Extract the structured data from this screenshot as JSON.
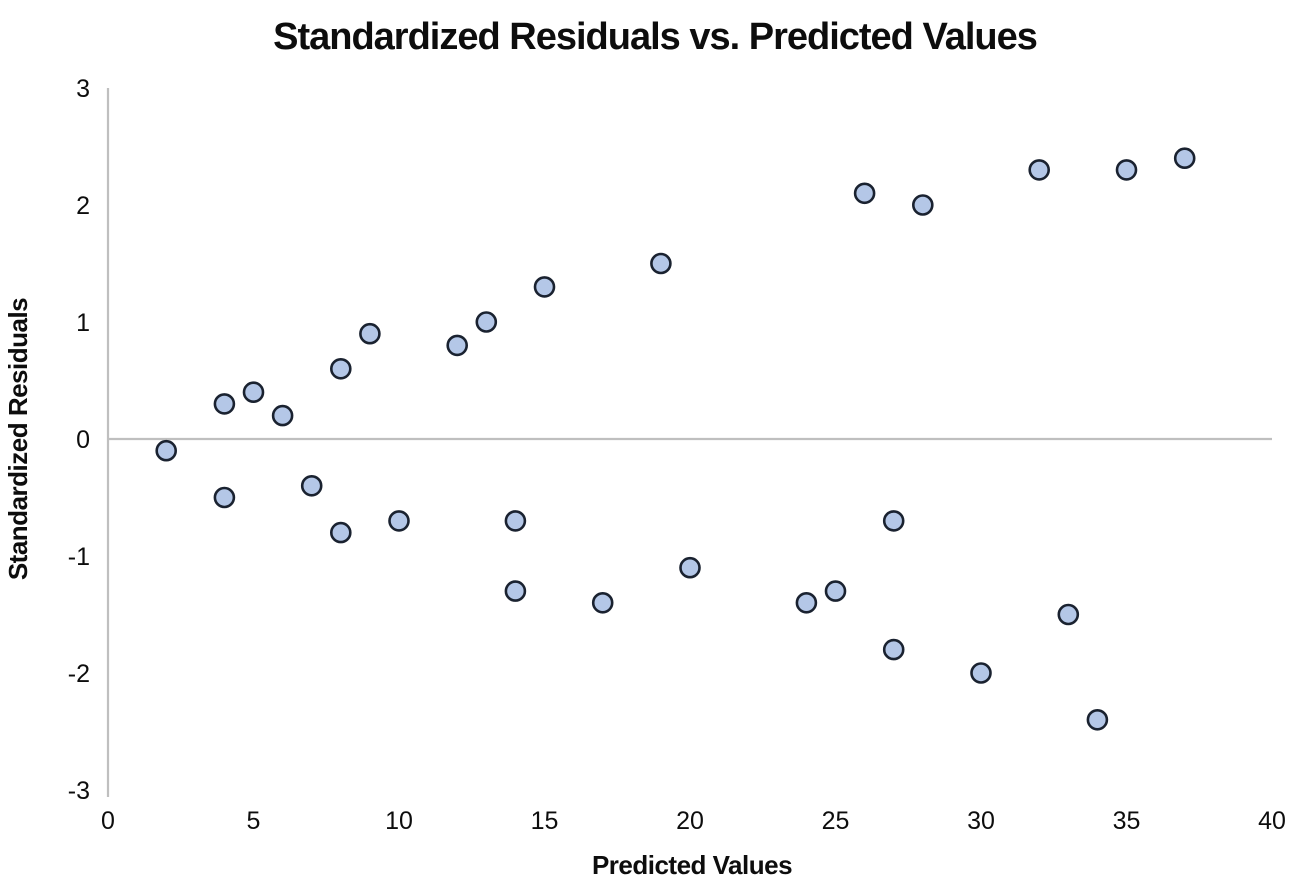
{
  "chart": {
    "title": "Standardized Residuals vs. Predicted Values",
    "x_axis_label": "Predicted Values",
    "y_axis_label": "Standardized Residuals"
  },
  "chart_data": {
    "type": "scatter",
    "title": "Standardized Residuals vs. Predicted Values",
    "xlabel": "Predicted Values",
    "ylabel": "Standardized Residuals",
    "xlim": [
      0,
      40
    ],
    "ylim": [
      -3,
      3
    ],
    "x_ticks": [
      0,
      5,
      10,
      15,
      20,
      25,
      30,
      35,
      40
    ],
    "y_ticks": [
      3,
      2,
      1,
      0,
      -1,
      -2,
      -3
    ],
    "grid": "off",
    "legend": "none",
    "baseline_at_y": 0,
    "colors": {
      "marker_fill": "#b4c7e7",
      "marker_stroke": "#1a2230",
      "axis_line": "#bfbfbf",
      "text": "#0d0d0d"
    },
    "points": [
      [
        2,
        -0.1
      ],
      [
        4,
        0.3
      ],
      [
        4,
        -0.5
      ],
      [
        5,
        0.4
      ],
      [
        6,
        0.2
      ],
      [
        7,
        -0.4
      ],
      [
        8,
        0.6
      ],
      [
        8,
        -0.8
      ],
      [
        9,
        0.9
      ],
      [
        10,
        -0.7
      ],
      [
        12,
        0.8
      ],
      [
        13,
        1.0
      ],
      [
        14,
        -0.7
      ],
      [
        14,
        -1.3
      ],
      [
        15,
        1.3
      ],
      [
        17,
        -1.4
      ],
      [
        19,
        1.5
      ],
      [
        20,
        -1.1
      ],
      [
        24,
        -1.4
      ],
      [
        25,
        -1.3
      ],
      [
        26,
        2.1
      ],
      [
        27,
        -0.7
      ],
      [
        27,
        -1.8
      ],
      [
        28,
        2.0
      ],
      [
        30,
        -2.0
      ],
      [
        32,
        2.3
      ],
      [
        33,
        -1.5
      ],
      [
        34,
        -2.4
      ],
      [
        35,
        2.3
      ],
      [
        37,
        2.4
      ]
    ]
  }
}
